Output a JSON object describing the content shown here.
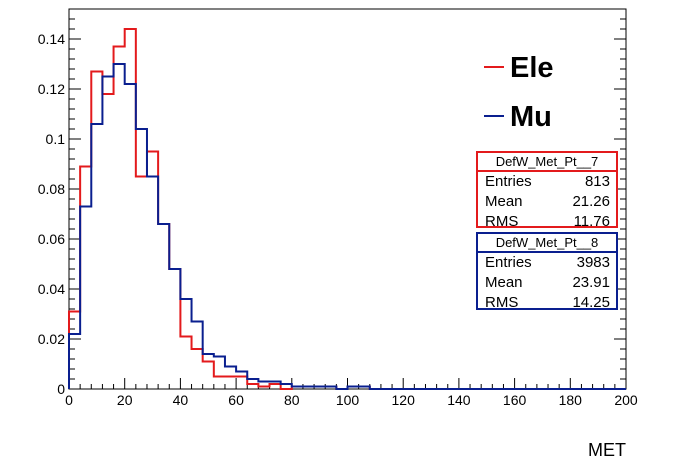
{
  "chart_data": {
    "type": "step-histogram",
    "title": "",
    "xlabel": "MET",
    "ylabel": "",
    "xlim": [
      0,
      200
    ],
    "ylim": [
      0,
      0.152
    ],
    "x_ticks": [
      0,
      20,
      40,
      60,
      80,
      100,
      120,
      140,
      160,
      180,
      200
    ],
    "x_tick_labels": [
      "0",
      "20",
      "40",
      "60",
      "80",
      "100",
      "120",
      "140",
      "160",
      "180",
      "200"
    ],
    "y_ticks": [
      0,
      0.02,
      0.04,
      0.06,
      0.08,
      0.1,
      0.12,
      0.14
    ],
    "y_tick_labels": [
      "0",
      "0.02",
      "0.04",
      "0.06",
      "0.08",
      "0.1",
      "0.12",
      "0.14"
    ],
    "bin_width": 4,
    "legend_placement": "top-right",
    "series": [
      {
        "name": "Ele",
        "color": "#e31a1c",
        "values": [
          0.031,
          0.089,
          0.127,
          0.118,
          0.137,
          0.144,
          0.085,
          0.095,
          0.066,
          0.048,
          0.021,
          0.016,
          0.011,
          0.005,
          0.005,
          0.005,
          0.002,
          0.001,
          0.002,
          0.0,
          0.001,
          0.001,
          0.001,
          0.001,
          0.0,
          0.001,
          0.001,
          0.0,
          0.0,
          0.0,
          0.0,
          0.0,
          0.0,
          0.0,
          0.0,
          0.0,
          0.0,
          0.0,
          0.0,
          0.0,
          0.0,
          0.0,
          0.0,
          0.0,
          0.0,
          0.0,
          0.0,
          0.0,
          0.0,
          0.0
        ]
      },
      {
        "name": "Mu",
        "color": "#0a1f8f",
        "values": [
          0.022,
          0.073,
          0.106,
          0.125,
          0.13,
          0.122,
          0.104,
          0.085,
          0.066,
          0.048,
          0.036,
          0.027,
          0.014,
          0.013,
          0.009,
          0.007,
          0.004,
          0.003,
          0.003,
          0.002,
          0.001,
          0.001,
          0.001,
          0.001,
          0.0,
          0.001,
          0.001,
          0.0,
          0.0,
          0.0,
          0.0,
          0.0,
          0.0,
          0.0,
          0.0,
          0.0,
          0.0,
          0.0,
          0.0,
          0.0,
          0.0,
          0.0,
          0.0,
          0.0,
          0.0,
          0.0,
          0.0,
          0.0,
          0.0,
          0.0
        ]
      }
    ]
  },
  "stats_boxes": [
    {
      "name": "DefW_Met_Pt__7",
      "entries": "813",
      "mean": "21.26",
      "rms": "11.76",
      "color": "#e31a1c"
    },
    {
      "name": "DefW_Met_Pt__8",
      "entries": "3983",
      "mean": "23.91",
      "rms": "14.25",
      "color": "#0a1f8f"
    }
  ],
  "stats_labels": {
    "entries": "Entries",
    "mean": "Mean",
    "rms": "RMS"
  }
}
